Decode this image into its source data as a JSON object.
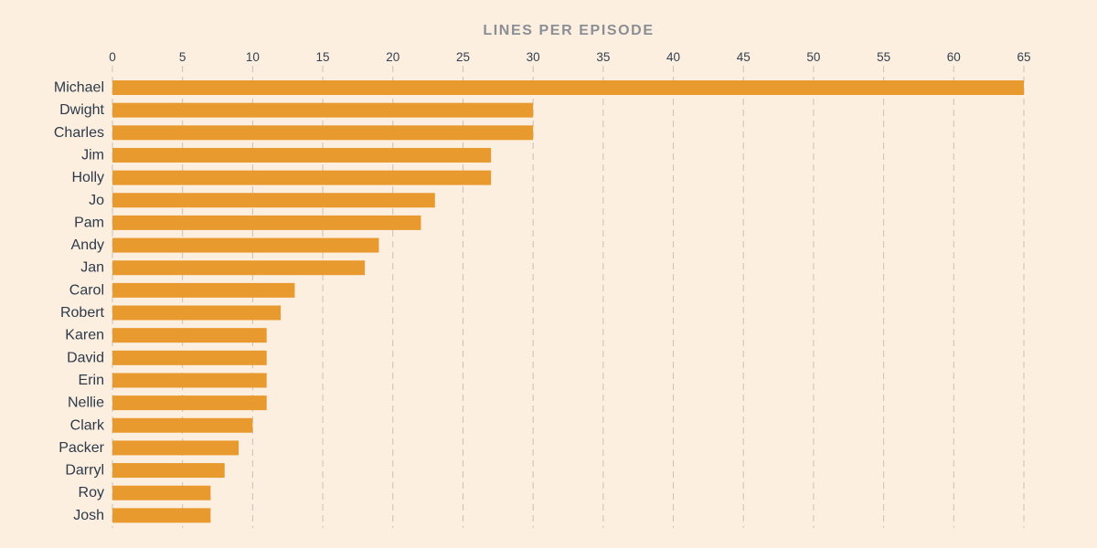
{
  "chart_data": {
    "type": "bar",
    "orientation": "horizontal",
    "title": "LINES PER EPISODE",
    "xlabel": "",
    "ylabel": "",
    "xlim": [
      0,
      65
    ],
    "x_ticks": [
      0,
      5,
      10,
      15,
      20,
      25,
      30,
      35,
      40,
      45,
      50,
      55,
      60,
      65
    ],
    "grid": "vertical dashed",
    "legend": "none",
    "bar_color": "#e99a2f",
    "background_color": "#fcefe0",
    "categories": [
      "Michael",
      "Dwight",
      "Charles",
      "Jim",
      "Holly",
      "Jo",
      "Pam",
      "Andy",
      "Jan",
      "Carol",
      "Robert",
      "Karen",
      "David",
      "Erin",
      "Nellie",
      "Clark",
      "Packer",
      "Darryl",
      "Roy",
      "Josh"
    ],
    "values": [
      65,
      30,
      30,
      27,
      27,
      23,
      22,
      19,
      18,
      13,
      12,
      11,
      11,
      11,
      11,
      10,
      9,
      8,
      7,
      7
    ]
  }
}
